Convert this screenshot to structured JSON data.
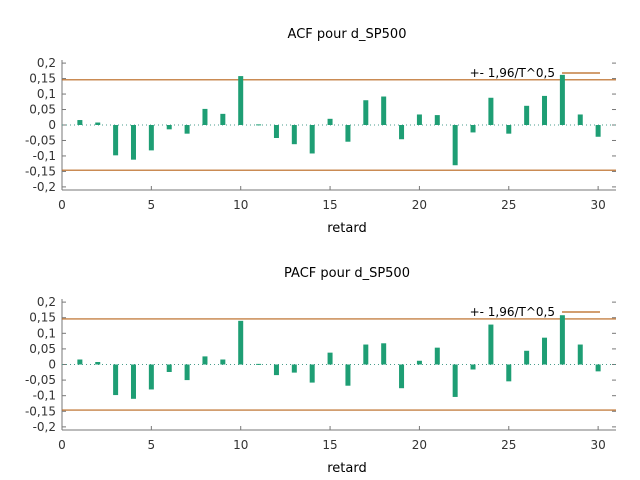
{
  "colors": {
    "bar": "#1e9e74",
    "band": "#b8651b",
    "frame": "#777777",
    "zero": "#4a9e8c"
  },
  "chart_data": [
    {
      "type": "bar",
      "title": "ACF pour d_SP500",
      "xlabel": "retard",
      "ylabel": "",
      "xlim": [
        0,
        31
      ],
      "ylim": [
        -0.21,
        0.21
      ],
      "xticks": [
        "0",
        "5",
        "10",
        "15",
        "20",
        "25",
        "30"
      ],
      "yticks": [
        "0,2",
        "0,15",
        "0,1",
        "0,05",
        "0",
        "-0,05",
        "-0,1",
        "-0,15",
        "-0,2"
      ],
      "band": 0.146,
      "legend": "+- 1,96/T^0,5",
      "legend_position": "top-right",
      "x": [
        1,
        2,
        3,
        4,
        5,
        6,
        7,
        8,
        9,
        10,
        11,
        12,
        13,
        14,
        15,
        16,
        17,
        18,
        19,
        20,
        21,
        22,
        23,
        24,
        25,
        26,
        27,
        28,
        29,
        30
      ],
      "values": [
        0.016,
        0.008,
        -0.098,
        -0.112,
        -0.082,
        -0.014,
        -0.028,
        0.052,
        0.036,
        0.158,
        0.002,
        -0.042,
        -0.062,
        -0.092,
        0.02,
        -0.054,
        0.08,
        0.092,
        -0.046,
        0.034,
        0.032,
        -0.13,
        -0.024,
        0.088,
        -0.028,
        0.062,
        0.094,
        0.162,
        0.034,
        -0.038
      ]
    },
    {
      "type": "bar",
      "title": "PACF pour d_SP500",
      "xlabel": "retard",
      "ylabel": "",
      "xlim": [
        0,
        31
      ],
      "ylim": [
        -0.21,
        0.21
      ],
      "xticks": [
        "0",
        "5",
        "10",
        "15",
        "20",
        "25",
        "30"
      ],
      "yticks": [
        "0,2",
        "0,15",
        "0,1",
        "0,05",
        "0",
        "-0,05",
        "-0,1",
        "-0,15",
        "-0,2"
      ],
      "band": 0.146,
      "legend": "+- 1,96/T^0,5",
      "legend_position": "top-right",
      "x": [
        1,
        2,
        3,
        4,
        5,
        6,
        7,
        8,
        9,
        10,
        11,
        12,
        13,
        14,
        15,
        16,
        17,
        18,
        19,
        20,
        21,
        22,
        23,
        24,
        25,
        26,
        27,
        28,
        29,
        30
      ],
      "values": [
        0.016,
        0.008,
        -0.098,
        -0.11,
        -0.08,
        -0.024,
        -0.05,
        0.026,
        0.016,
        0.14,
        0.002,
        -0.034,
        -0.026,
        -0.058,
        0.038,
        -0.068,
        0.064,
        0.068,
        -0.076,
        0.012,
        0.054,
        -0.104,
        -0.016,
        0.128,
        -0.054,
        0.044,
        0.086,
        0.158,
        0.064,
        -0.022
      ]
    }
  ]
}
